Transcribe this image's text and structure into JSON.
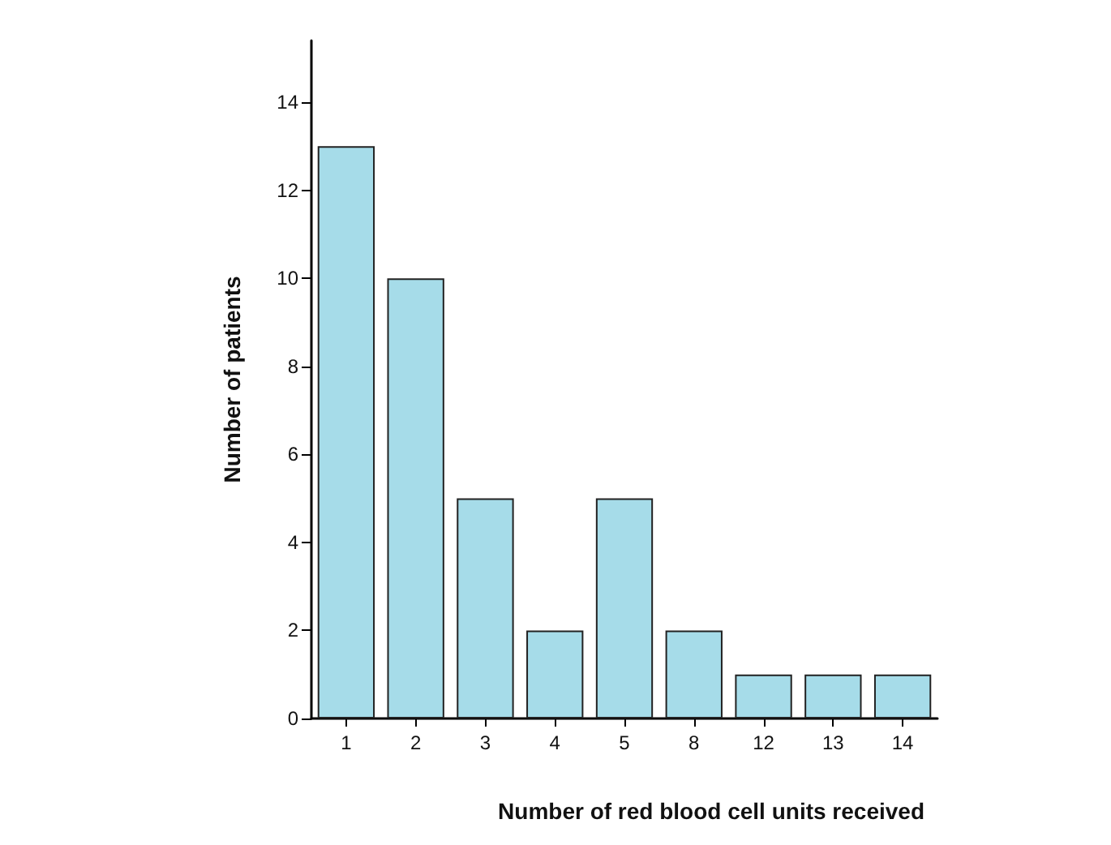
{
  "chart_data": {
    "type": "bar",
    "xlabel": "Number of red blood cell units received",
    "ylabel": "Number of patients",
    "categories": [
      "1",
      "2",
      "3",
      "4",
      "5",
      "8",
      "12",
      "13",
      "14"
    ],
    "values": [
      13,
      10,
      5,
      2,
      5,
      2,
      1,
      1,
      1
    ],
    "color": "#a6dce9",
    "ylim": [
      0,
      15.4
    ],
    "yticks": [
      0,
      2,
      4,
      6,
      8,
      10,
      12,
      14
    ]
  }
}
